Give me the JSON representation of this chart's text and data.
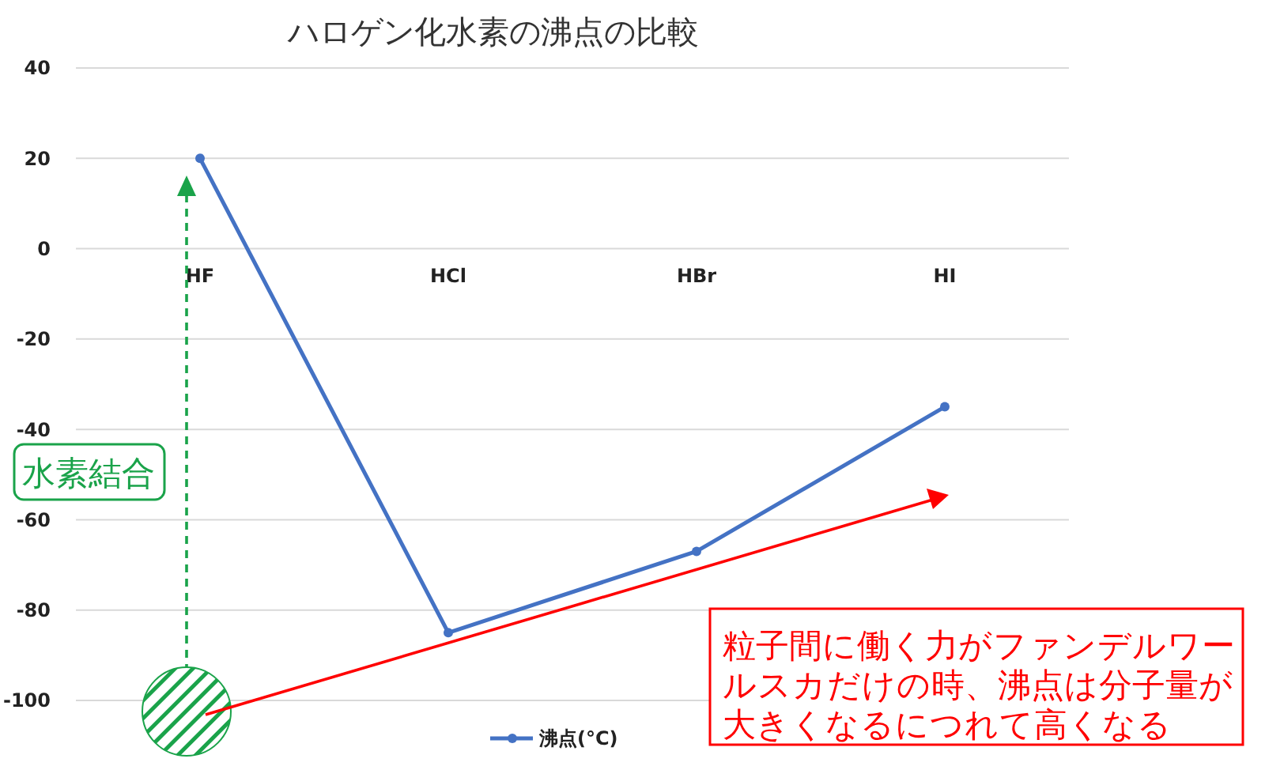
{
  "chart_data": {
    "type": "line",
    "title": "ハロゲン化水素の沸点の比較",
    "categories": [
      "HF",
      "HCl",
      "HBr",
      "HI"
    ],
    "series": [
      {
        "name": "沸点(°C)",
        "color": "#4472c4",
        "values": [
          20,
          -85,
          -67,
          -35
        ]
      }
    ],
    "ylim": [
      -100,
      40
    ],
    "yticks": [
      -100,
      -80,
      -60,
      -40,
      -20,
      0,
      20,
      40
    ],
    "grid": "y",
    "legend": "bottom",
    "marker": "circle",
    "line_style": "solid",
    "annotations": [
      "水素結合",
      "粒子間に働く力がファンデルワールスカだけの時、沸点は分子量が大きくなるにつれて高くなる"
    ]
  }
}
